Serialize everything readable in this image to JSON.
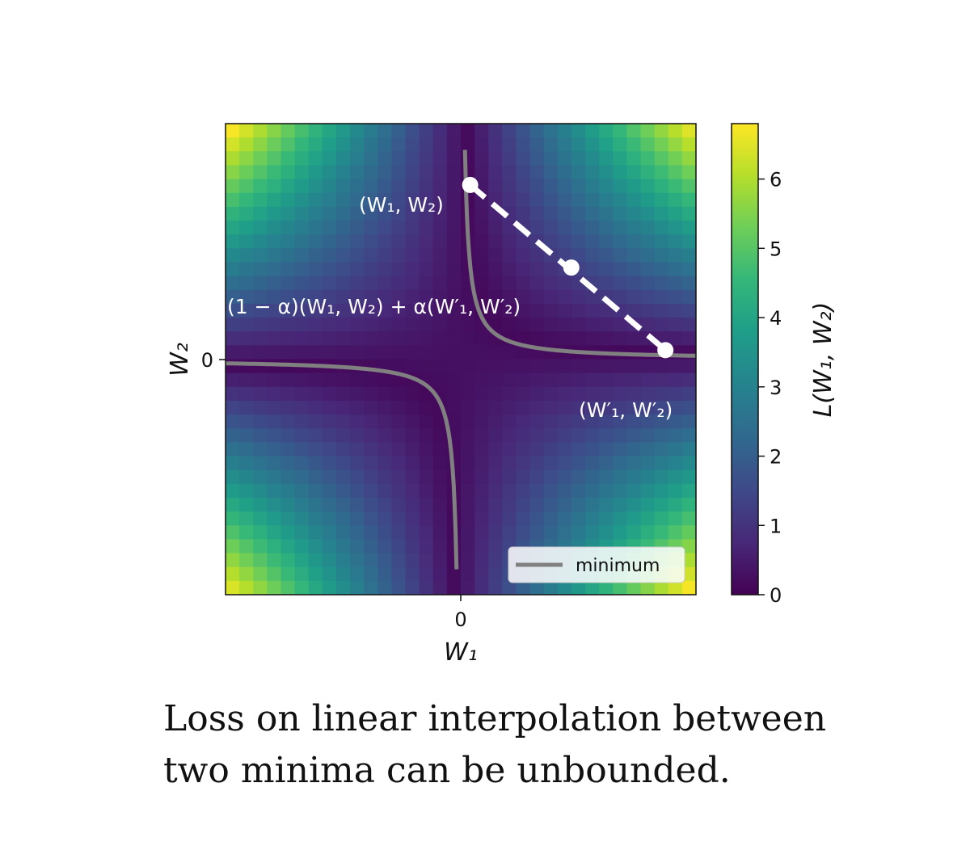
{
  "chart_data": {
    "type": "heatmap",
    "grid_size": 34,
    "x_range": [
      -1,
      1
    ],
    "y_range": [
      -1,
      1
    ],
    "loss_function": "(1 - W1*W2)^2 style saddle loss",
    "colormap": "viridis",
    "colors": {
      "viridis": [
        "#440154",
        "#482878",
        "#3e4989",
        "#31688e",
        "#26828e",
        "#1f9e89",
        "#35b779",
        "#6ece58",
        "#b5de2b",
        "#fde725"
      ],
      "minimum_curve": "#808080",
      "interp_line": "#ffffff",
      "legend_line": "#808080"
    },
    "x_ticks": [
      "0"
    ],
    "y_ticks": [
      "0"
    ],
    "xlabel": "W₁",
    "ylabel": "W₂",
    "colorbar": {
      "label": "L(W₁, W₂)",
      "range": [
        0,
        6.8
      ],
      "ticks": [
        "0",
        "1",
        "2",
        "3",
        "4",
        "5",
        "6"
      ]
    },
    "minimum_curve": {
      "name": "minimum",
      "equation": "W1 * W2 = 0.02 (hyperbola branches)"
    },
    "points": [
      {
        "name": "(W₁, W₂)",
        "x": 0.04,
        "y": 0.74
      },
      {
        "name": "interpolation point",
        "x": 0.47,
        "y": 0.39
      },
      {
        "name": "(W′₁, W′₂)",
        "x": 0.87,
        "y": 0.04
      }
    ],
    "annotations": {
      "start": "(W₁, W₂)",
      "end": "(W′₁, W′₂)",
      "interp": "(1 − α)(W₁, W₂) + α(W′₁, W′₂)"
    },
    "legend": {
      "label": "minimum",
      "position": "lower-right"
    }
  },
  "caption": {
    "line1": "Loss on linear interpolation between",
    "line2": "two minima can be unbounded."
  }
}
